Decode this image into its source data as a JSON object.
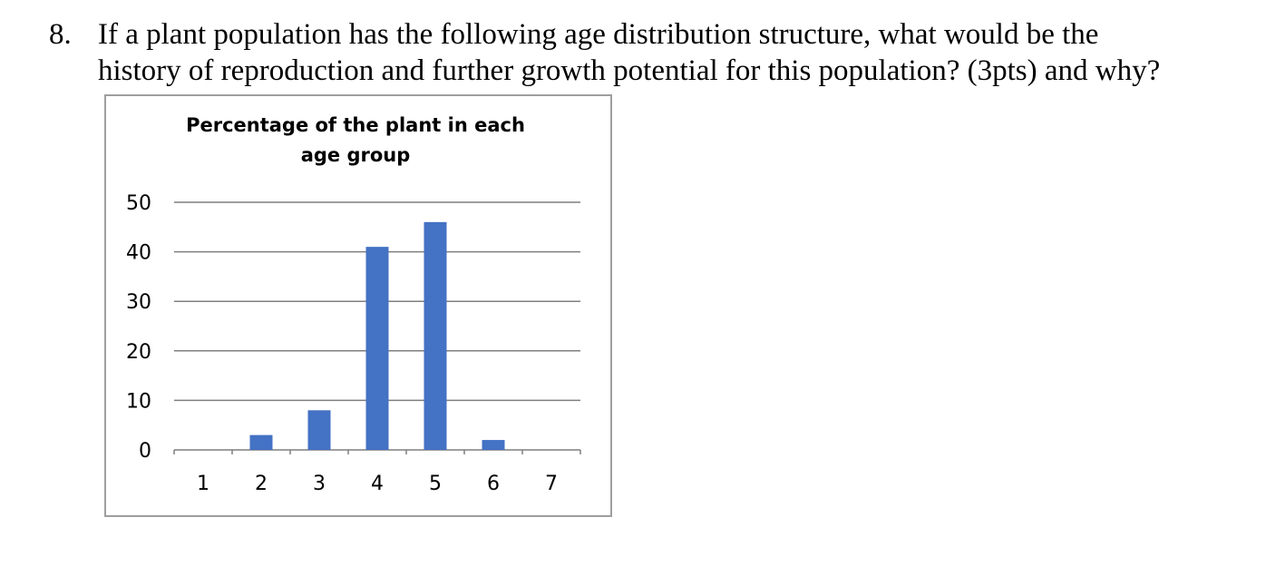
{
  "question": {
    "number": "8.",
    "line1": "If a plant population has the following age distribution structure, what would be the",
    "line2": "history of reproduction and further growth potential for this population? (3pts) and why?"
  },
  "chart_data": {
    "type": "bar",
    "title": "Percentage of the plant in each age group",
    "xlabel": "",
    "ylabel": "",
    "categories": [
      "1",
      "2",
      "3",
      "4",
      "5",
      "6",
      "7"
    ],
    "values": [
      0,
      3,
      8,
      41,
      46,
      2,
      0
    ],
    "ylim": [
      0,
      50
    ],
    "yticks": [
      0,
      10,
      20,
      30,
      40,
      50
    ],
    "grid": true,
    "legend": "none",
    "bar_color": "#4472c4",
    "grid_color": "#7f7f7f"
  }
}
